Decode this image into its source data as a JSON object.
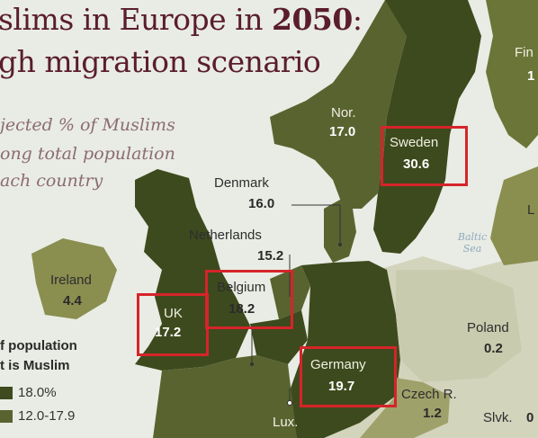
{
  "title": {
    "line1_prefix": "slims in Europe in ",
    "line1_year": "2050",
    "line1_suffix": ":",
    "line2": "gh migration scenario"
  },
  "subtitle": [
    "jected % of Muslims",
    "ong total population",
    "ach country"
  ],
  "colors": {
    "dark_land": "#596330",
    "mid_land": "#8a8e4f",
    "light_land": "#c6c8a9",
    "sea": "#e9ece4",
    "highlight_box": "#d6242a",
    "title": "#5a1d2e"
  },
  "countries": {
    "finland": {
      "name": "Fin",
      "value": "1"
    },
    "norway": {
      "name": "Nor.",
      "value": "17.0"
    },
    "sweden": {
      "name": "Sweden",
      "value": "30.6"
    },
    "denmark": {
      "name": "Denmark",
      "value": "16.0"
    },
    "netherlands": {
      "name": "Netherlands",
      "value": "15.2"
    },
    "belgium": {
      "name": "Belgium",
      "value": "18.2"
    },
    "ireland": {
      "name": "Ireland",
      "value": "4.4"
    },
    "uk": {
      "name": "UK",
      "value": "17.2"
    },
    "germany": {
      "name": "Germany",
      "value": "19.7"
    },
    "poland": {
      "name": "Poland",
      "value": "0.2"
    },
    "czech": {
      "name": "Czech R.",
      "value": "1.2"
    },
    "slovakia": {
      "name": "Slvk.",
      "value": "0"
    },
    "luxembourg": {
      "name": "Lux."
    },
    "latvia": {
      "name": "L"
    }
  },
  "sea_label": [
    "Baltic",
    "Sea"
  ],
  "legend": {
    "title_line1": "f population",
    "title_line2": "t is Muslim",
    "items": [
      {
        "label": "18.0%",
        "color": "#3f4a1e"
      },
      {
        "label": "12.0-17.9",
        "color": "#596330"
      }
    ]
  }
}
